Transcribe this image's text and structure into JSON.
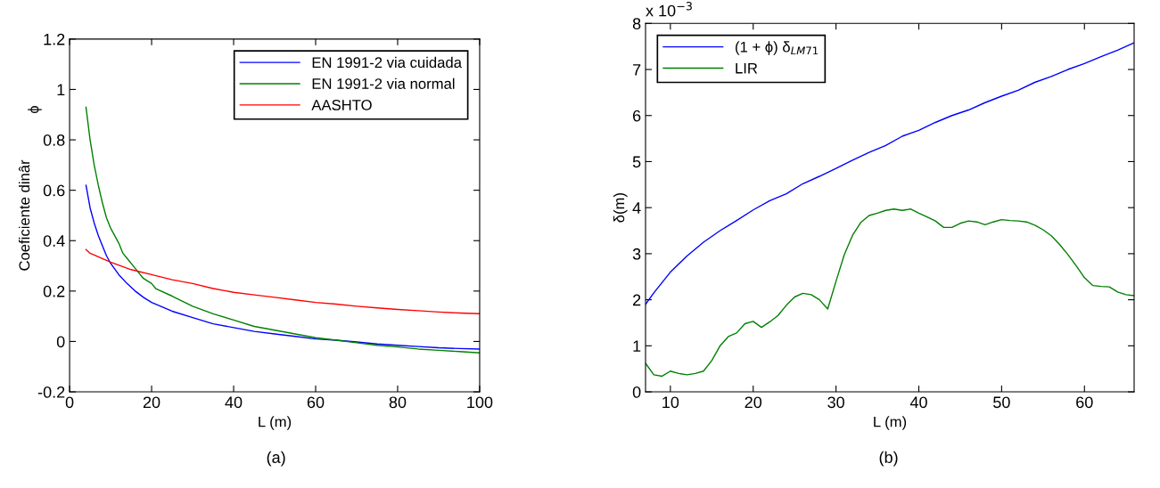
{
  "chart_data": [
    {
      "type": "line",
      "xlabel": "L (m)",
      "ylabel": "Coeficiente dinâr",
      "annotations": [
        "ϕ",
        "(a)"
      ],
      "xlim": [
        0,
        100
      ],
      "ylim": [
        -0.2,
        1.2
      ],
      "xticks": [
        0,
        20,
        40,
        60,
        80,
        100
      ],
      "yticks": [
        -0.2,
        0,
        0.2,
        0.4,
        0.6,
        0.8,
        1,
        1.2
      ],
      "legend": "top right",
      "grid": false,
      "series": [
        {
          "name": "EN 1991-2 via cuidada",
          "color": "#0000ff",
          "x": [
            4,
            5,
            6,
            7,
            8,
            9,
            10,
            12,
            14,
            16,
            18,
            20,
            25,
            30,
            35,
            40,
            45,
            50,
            55,
            60,
            65,
            70,
            75,
            80,
            85,
            90,
            95,
            100
          ],
          "values": [
            0.62,
            0.53,
            0.47,
            0.42,
            0.38,
            0.34,
            0.31,
            0.265,
            0.23,
            0.2,
            0.175,
            0.155,
            0.12,
            0.095,
            0.07,
            0.055,
            0.04,
            0.03,
            0.02,
            0.01,
            0.005,
            -0.002,
            -0.01,
            -0.015,
            -0.02,
            -0.025,
            -0.028,
            -0.03
          ]
        },
        {
          "name": "EN 1991-2 via normal",
          "color": "#008000",
          "x": [
            4,
            5,
            6,
            7,
            8,
            9,
            10,
            12,
            13,
            14,
            16,
            18,
            20,
            21,
            25,
            30,
            35,
            40,
            45,
            50,
            55,
            60,
            65,
            70,
            75,
            80,
            85,
            90,
            95,
            100
          ],
          "values": [
            0.93,
            0.8,
            0.7,
            0.62,
            0.55,
            0.49,
            0.45,
            0.39,
            0.35,
            0.33,
            0.29,
            0.25,
            0.23,
            0.21,
            0.18,
            0.14,
            0.11,
            0.085,
            0.06,
            0.045,
            0.03,
            0.015,
            0.005,
            -0.005,
            -0.015,
            -0.022,
            -0.03,
            -0.035,
            -0.04,
            -0.045
          ]
        },
        {
          "name": "AASHTO",
          "color": "#ff0000",
          "x": [
            4,
            5,
            10,
            15,
            20,
            25,
            30,
            35,
            40,
            45,
            50,
            55,
            60,
            65,
            70,
            75,
            80,
            85,
            90,
            95,
            100
          ],
          "values": [
            0.365,
            0.35,
            0.315,
            0.285,
            0.265,
            0.245,
            0.23,
            0.21,
            0.195,
            0.185,
            0.175,
            0.165,
            0.155,
            0.148,
            0.14,
            0.133,
            0.127,
            0.122,
            0.117,
            0.113,
            0.11
          ]
        }
      ]
    },
    {
      "type": "line",
      "xlabel": "L (m)",
      "ylabel": "δ(m)",
      "annotations": [
        "x 10$^{−3}$",
        "(b)"
      ],
      "xlim": [
        7,
        66
      ],
      "ylim": [
        0,
        8
      ],
      "xticks": [
        10,
        20,
        30,
        40,
        50,
        60
      ],
      "yticks": [
        0,
        1,
        2,
        3,
        4,
        5,
        6,
        7,
        8
      ],
      "legend": "top left",
      "grid": false,
      "series": [
        {
          "name": "(1 + ϕ) δ$_{LM71}$",
          "color": "#0000ff",
          "x": [
            7,
            8,
            10,
            12,
            14,
            16,
            18,
            20,
            22,
            24,
            26,
            28,
            30,
            32,
            34,
            36,
            38,
            40,
            42,
            44,
            46,
            48,
            50,
            52,
            54,
            56,
            58,
            60,
            62,
            64,
            66
          ],
          "values": [
            1.9,
            2.15,
            2.6,
            2.95,
            3.25,
            3.5,
            3.72,
            3.95,
            4.15,
            4.3,
            4.52,
            4.68,
            4.85,
            5.03,
            5.2,
            5.35,
            5.55,
            5.68,
            5.85,
            6.0,
            6.12,
            6.28,
            6.42,
            6.55,
            6.72,
            6.85,
            7.0,
            7.13,
            7.28,
            7.42,
            7.58
          ]
        },
        {
          "name": "LIR",
          "color": "#008000",
          "x": [
            7,
            8,
            9,
            10,
            11,
            12,
            13,
            14,
            15,
            16,
            17,
            18,
            19,
            20,
            21,
            22,
            23,
            24,
            25,
            26,
            27,
            28,
            29,
            30,
            31,
            32,
            33,
            34,
            35,
            36,
            37,
            38,
            39,
            40,
            41,
            42,
            43,
            44,
            45,
            46,
            47,
            48,
            49,
            50,
            51,
            52,
            53,
            54,
            55,
            56,
            57,
            58,
            59,
            60,
            61,
            62,
            63,
            64,
            65,
            66
          ],
          "values": [
            0.62,
            0.37,
            0.34,
            0.45,
            0.4,
            0.37,
            0.4,
            0.45,
            0.68,
            1.0,
            1.2,
            1.28,
            1.48,
            1.53,
            1.4,
            1.52,
            1.66,
            1.88,
            2.06,
            2.14,
            2.11,
            2.0,
            1.8,
            2.4,
            2.98,
            3.4,
            3.68,
            3.83,
            3.88,
            3.94,
            3.97,
            3.94,
            3.97,
            3.88,
            3.8,
            3.71,
            3.57,
            3.57,
            3.66,
            3.71,
            3.69,
            3.63,
            3.69,
            3.74,
            3.72,
            3.71,
            3.69,
            3.62,
            3.52,
            3.39,
            3.2,
            2.98,
            2.74,
            2.48,
            2.31,
            2.29,
            2.28,
            2.17,
            2.11,
            2.09
          ]
        }
      ]
    }
  ]
}
